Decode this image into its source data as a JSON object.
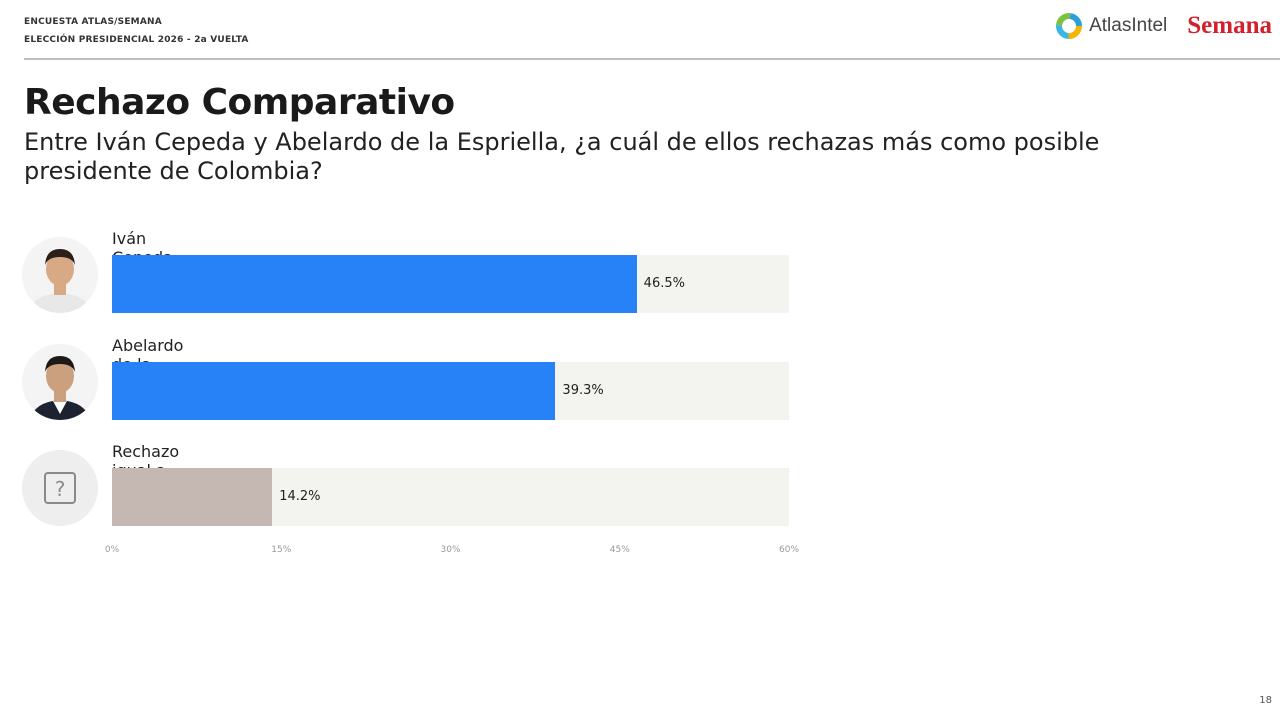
{
  "header": {
    "line1": "ENCUESTA ATLAS/SEMANA",
    "line2": "ELECCIÓN PRESIDENCIAL 2026 - 2a VUELTA",
    "atlas_logo_text": "AtlasIntel",
    "semana_logo_text": "Semana"
  },
  "colors": {
    "candidate": "#2782f7",
    "neutral": "#c5b8b2",
    "track": "#f3f3f0"
  },
  "chart_data": {
    "type": "bar",
    "orientation": "horizontal",
    "title": "Rechazo Comparativo",
    "subtitle": "Entre Iván Cepeda y Abelardo de la Espriella, ¿a cuál de ellos rechazas más como posible presidente de Colombia?",
    "categories": [
      "Iván Cepeda",
      "Abelardo de la Espriella",
      "Rechazo igual a los dos"
    ],
    "values": [
      46.5,
      39.3,
      14.2
    ],
    "value_labels": [
      "46.5%",
      "39.3%",
      "14.2%"
    ],
    "avatars": [
      "person-avatar",
      "person-avatar",
      "question-mark-icon"
    ],
    "xlim": [
      0,
      60
    ],
    "ticks": [
      "0%",
      "15%",
      "30%",
      "45%",
      "60%"
    ],
    "tick_values": [
      0,
      15,
      30,
      45,
      60
    ],
    "grid": false
  },
  "page_number": "18"
}
